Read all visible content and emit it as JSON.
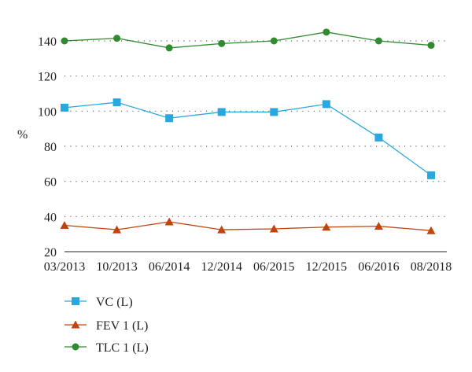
{
  "chart_data": {
    "type": "line",
    "ylabel": "%",
    "xlabel": "",
    "title": "",
    "ylim": [
      20,
      150
    ],
    "yticks": [
      20,
      40,
      60,
      80,
      100,
      120,
      140
    ],
    "grid": "horizontal dotted",
    "legend_position": "bottom-left",
    "categories": [
      "03/2013",
      "10/2013",
      "06/2014",
      "12/2014",
      "06/2015",
      "12/2015",
      "06/2016",
      "08/2018"
    ],
    "series": [
      {
        "name": "VC (L)",
        "marker": "square",
        "color": "#29a8e0",
        "values": [
          102,
          105,
          96,
          99.5,
          99.5,
          104,
          85,
          63.5
        ]
      },
      {
        "name": "FEV 1 (L)",
        "marker": "triangle",
        "color": "#c1440e",
        "values": [
          35,
          32.5,
          37,
          32.5,
          33,
          34,
          34.5,
          32
        ]
      },
      {
        "name": "TLC 1 (L)",
        "marker": "circle",
        "color": "#2e8b2e",
        "values": [
          140,
          141.5,
          136,
          138.5,
          140,
          145,
          140,
          137.5
        ]
      }
    ]
  }
}
